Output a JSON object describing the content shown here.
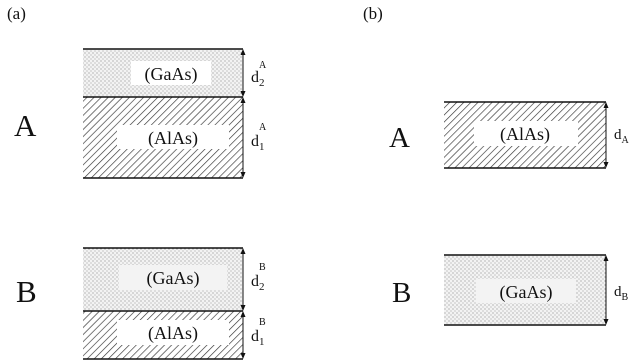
{
  "panels": {
    "a": {
      "label": "(a)",
      "A": {
        "letter": "A",
        "top": {
          "material": "(GaAs)",
          "thickness_symbol": "d",
          "sub": "2",
          "sup": "A"
        },
        "bottom": {
          "material": "(AlAs)",
          "thickness_symbol": "d",
          "sub": "1",
          "sup": "A"
        }
      },
      "B": {
        "letter": "B",
        "top": {
          "material": "(GaAs)",
          "thickness_symbol": "d",
          "sub": "2",
          "sup": "B"
        },
        "bottom": {
          "material": "(AlAs)",
          "thickness_symbol": "d",
          "sub": "1",
          "sup": "B"
        }
      }
    },
    "b": {
      "label": "(b)",
      "A": {
        "letter": "A",
        "material": "(AlAs)",
        "thickness_symbol": "d",
        "sub": "A"
      },
      "B": {
        "letter": "B",
        "material": "(GaAs)",
        "thickness_symbol": "d",
        "sub": "B"
      }
    }
  }
}
